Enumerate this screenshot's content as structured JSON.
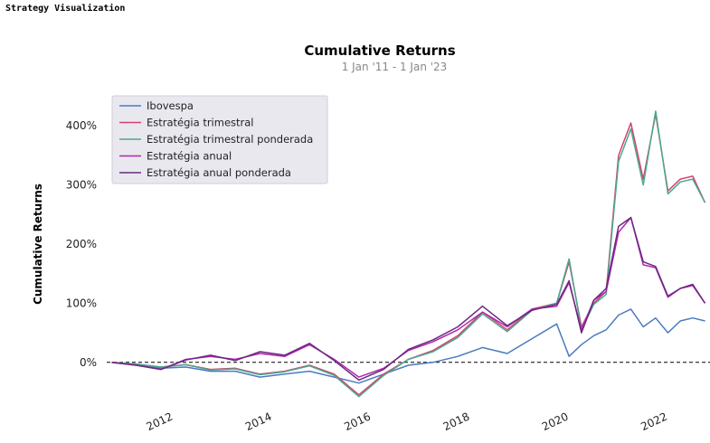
{
  "header": {
    "title": "Strategy Visualization"
  },
  "chart_data": {
    "type": "line",
    "title": "Cumulative Returns",
    "subtitle": "1 Jan '11 -  1 Jan '23",
    "ylabel": "Cumulative Returns",
    "xlabel": "",
    "xlim": [
      2010.9,
      2023.1
    ],
    "ylim": [
      -0.6,
      4.6
    ],
    "x_ticks": [
      2012,
      2014,
      2016,
      2018,
      2020,
      2022
    ],
    "x_tick_labels": [
      "2012",
      "2014",
      "2016",
      "2018",
      "2020",
      "2022"
    ],
    "y_ticks": [
      0,
      1,
      2,
      3,
      4
    ],
    "y_tick_labels": [
      "0%",
      "100%",
      "200%",
      "300%",
      "400%"
    ],
    "legend_position": "top-left",
    "grid": false,
    "x": [
      2011.0,
      2011.5,
      2012.0,
      2012.5,
      2013.0,
      2013.5,
      2014.0,
      2014.5,
      2015.0,
      2015.5,
      2016.0,
      2016.5,
      2017.0,
      2017.5,
      2018.0,
      2018.5,
      2019.0,
      2019.5,
      2020.0,
      2020.25,
      2020.5,
      2020.75,
      2021.0,
      2021.25,
      2021.5,
      2021.75,
      2022.0,
      2022.25,
      2022.5,
      2022.75,
      2023.0
    ],
    "series": [
      {
        "name": "Ibovespa",
        "color": "#4b7bbd",
        "values": [
          0.0,
          -0.05,
          -0.1,
          -0.08,
          -0.15,
          -0.15,
          -0.25,
          -0.2,
          -0.15,
          -0.25,
          -0.35,
          -0.2,
          -0.05,
          0.0,
          0.1,
          0.25,
          0.15,
          0.4,
          0.65,
          0.1,
          0.3,
          0.45,
          0.55,
          0.8,
          0.9,
          0.6,
          0.75,
          0.5,
          0.7,
          0.75,
          0.7
        ]
      },
      {
        "name": "Estratégia trimestral",
        "color": "#d6426c",
        "values": [
          0.0,
          -0.03,
          -0.08,
          -0.04,
          -0.12,
          -0.1,
          -0.2,
          -0.15,
          -0.05,
          -0.2,
          -0.55,
          -0.2,
          0.05,
          0.2,
          0.45,
          0.85,
          0.55,
          0.9,
          1.0,
          1.7,
          0.6,
          1.0,
          1.2,
          3.5,
          4.05,
          3.1,
          4.2,
          2.9,
          3.1,
          3.15,
          2.7
        ]
      },
      {
        "name": "Estratégia trimestral ponderada",
        "color": "#4aa88f",
        "values": [
          0.0,
          -0.03,
          -0.08,
          -0.04,
          -0.13,
          -0.11,
          -0.21,
          -0.16,
          -0.06,
          -0.22,
          -0.58,
          -0.22,
          0.05,
          0.18,
          0.42,
          0.82,
          0.52,
          0.88,
          1.0,
          1.75,
          0.55,
          0.98,
          1.15,
          3.4,
          3.95,
          3.0,
          4.25,
          2.85,
          3.05,
          3.1,
          2.7
        ]
      },
      {
        "name": "Estratégia anual",
        "color": "#b324b0",
        "values": [
          0.0,
          -0.05,
          -0.12,
          0.05,
          0.1,
          0.05,
          0.15,
          0.1,
          0.3,
          0.05,
          -0.25,
          -0.1,
          0.2,
          0.35,
          0.55,
          0.85,
          0.6,
          0.9,
          0.95,
          1.35,
          0.55,
          1.05,
          1.2,
          2.2,
          2.45,
          1.65,
          1.6,
          1.1,
          1.25,
          1.3,
          1.0
        ]
      },
      {
        "name": "Estratégia anual ponderada",
        "color": "#6a2a80",
        "values": [
          0.0,
          -0.05,
          -0.12,
          0.04,
          0.12,
          0.03,
          0.18,
          0.12,
          0.32,
          0.03,
          -0.3,
          -0.12,
          0.22,
          0.38,
          0.6,
          0.95,
          0.62,
          0.88,
          0.98,
          1.38,
          0.5,
          1.05,
          1.25,
          2.3,
          2.45,
          1.7,
          1.62,
          1.12,
          1.25,
          1.32,
          1.0
        ]
      }
    ]
  }
}
